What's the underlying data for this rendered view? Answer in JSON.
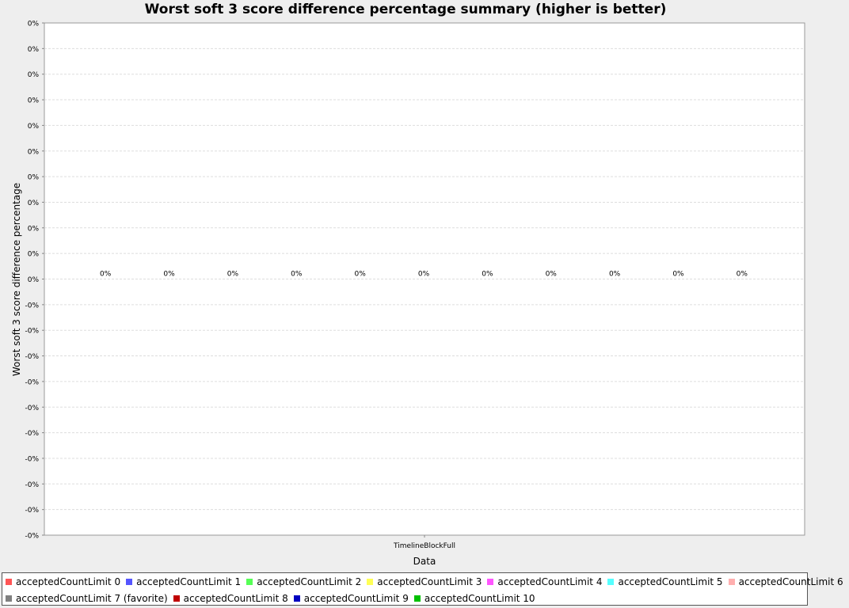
{
  "chart_data": {
    "type": "bar",
    "title": "Worst soft 3 score difference percentage summary (higher is better)",
    "xlabel": "Data",
    "ylabel": "Worst soft 3 score difference percentage",
    "categories": [
      "TimelineBlockFull"
    ],
    "y_tick_labels": [
      "0%",
      "0%",
      "0%",
      "0%",
      "0%",
      "0%",
      "0%",
      "0%",
      "0%",
      "0%",
      "0%",
      "-0%",
      "-0%",
      "-0%",
      "-0%",
      "-0%",
      "-0%",
      "-0%",
      "-0%",
      "-0%",
      "-0%"
    ],
    "grid": true,
    "legend_placement": "bottom",
    "series": [
      {
        "name": "acceptedCountLimit 0",
        "values": [
          0
        ],
        "label": "0%",
        "color": "#ff5555"
      },
      {
        "name": "acceptedCountLimit 1",
        "values": [
          0
        ],
        "label": "0%",
        "color": "#5555ff"
      },
      {
        "name": "acceptedCountLimit 2",
        "values": [
          0
        ],
        "label": "0%",
        "color": "#55ff55"
      },
      {
        "name": "acceptedCountLimit 3",
        "values": [
          0
        ],
        "label": "0%",
        "color": "#ffff55"
      },
      {
        "name": "acceptedCountLimit 4",
        "values": [
          0
        ],
        "label": "0%",
        "color": "#ff55ff"
      },
      {
        "name": "acceptedCountLimit 5",
        "values": [
          0
        ],
        "label": "0%",
        "color": "#55ffff"
      },
      {
        "name": "acceptedCountLimit 6",
        "values": [
          0
        ],
        "label": "0%",
        "color": "#ffafaf"
      },
      {
        "name": "acceptedCountLimit 7 (favorite)",
        "values": [
          0
        ],
        "label": "0%",
        "color": "#808080"
      },
      {
        "name": "acceptedCountLimit 8",
        "values": [
          0
        ],
        "label": "0%",
        "color": "#c00000"
      },
      {
        "name": "acceptedCountLimit 9",
        "values": [
          0
        ],
        "label": "0%",
        "color": "#0000c0"
      },
      {
        "name": "acceptedCountLimit 10",
        "values": [
          0
        ],
        "label": "0%",
        "color": "#00c000"
      }
    ]
  }
}
